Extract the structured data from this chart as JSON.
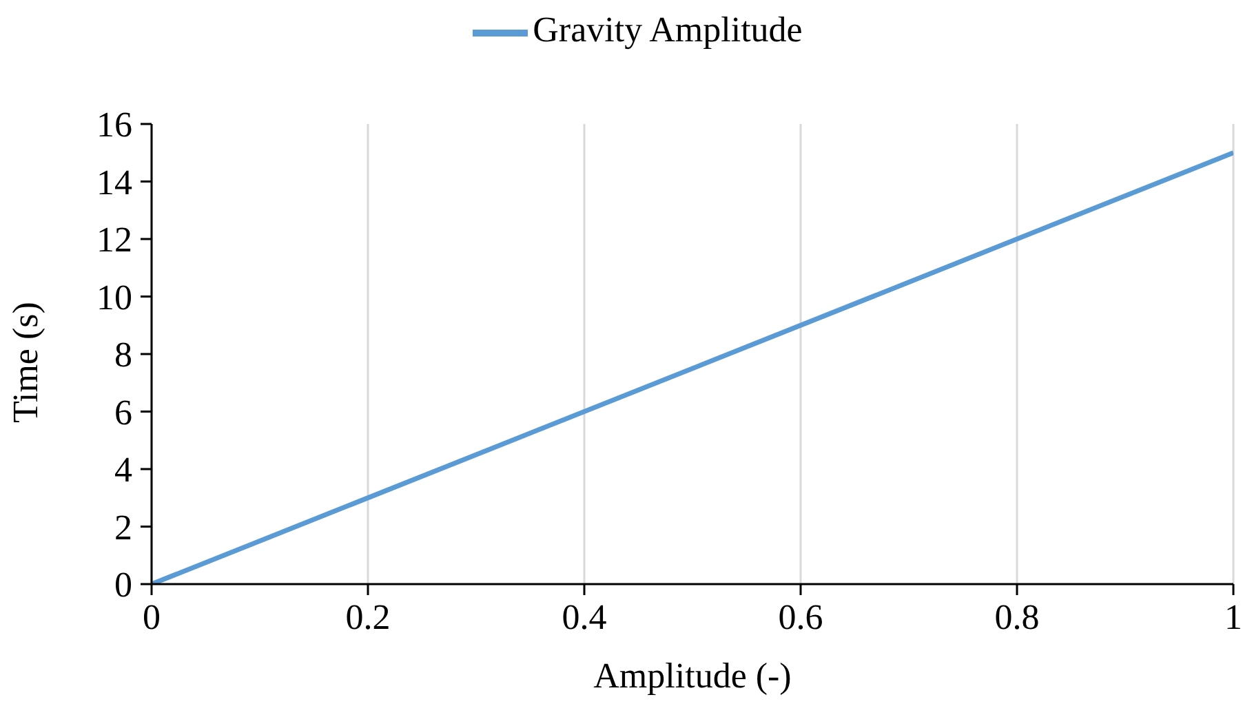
{
  "chart_data": {
    "type": "line",
    "xlabel": "Amplitude (-)",
    "ylabel": "Time (s)",
    "x": [
      0,
      1
    ],
    "series": [
      {
        "name": "Gravity Amplitude",
        "color": "#5b9bd5",
        "values": [
          0,
          15
        ]
      }
    ],
    "xlim": [
      0,
      1
    ],
    "xticks": [
      0,
      0.2,
      0.4,
      0.6,
      0.8,
      1
    ],
    "ylim": [
      0,
      16
    ],
    "yticks": [
      0,
      2,
      4,
      6,
      8,
      10,
      12,
      14,
      16
    ],
    "grid": "x",
    "legend": "top",
    "marker": "none",
    "line_style": "solid"
  }
}
